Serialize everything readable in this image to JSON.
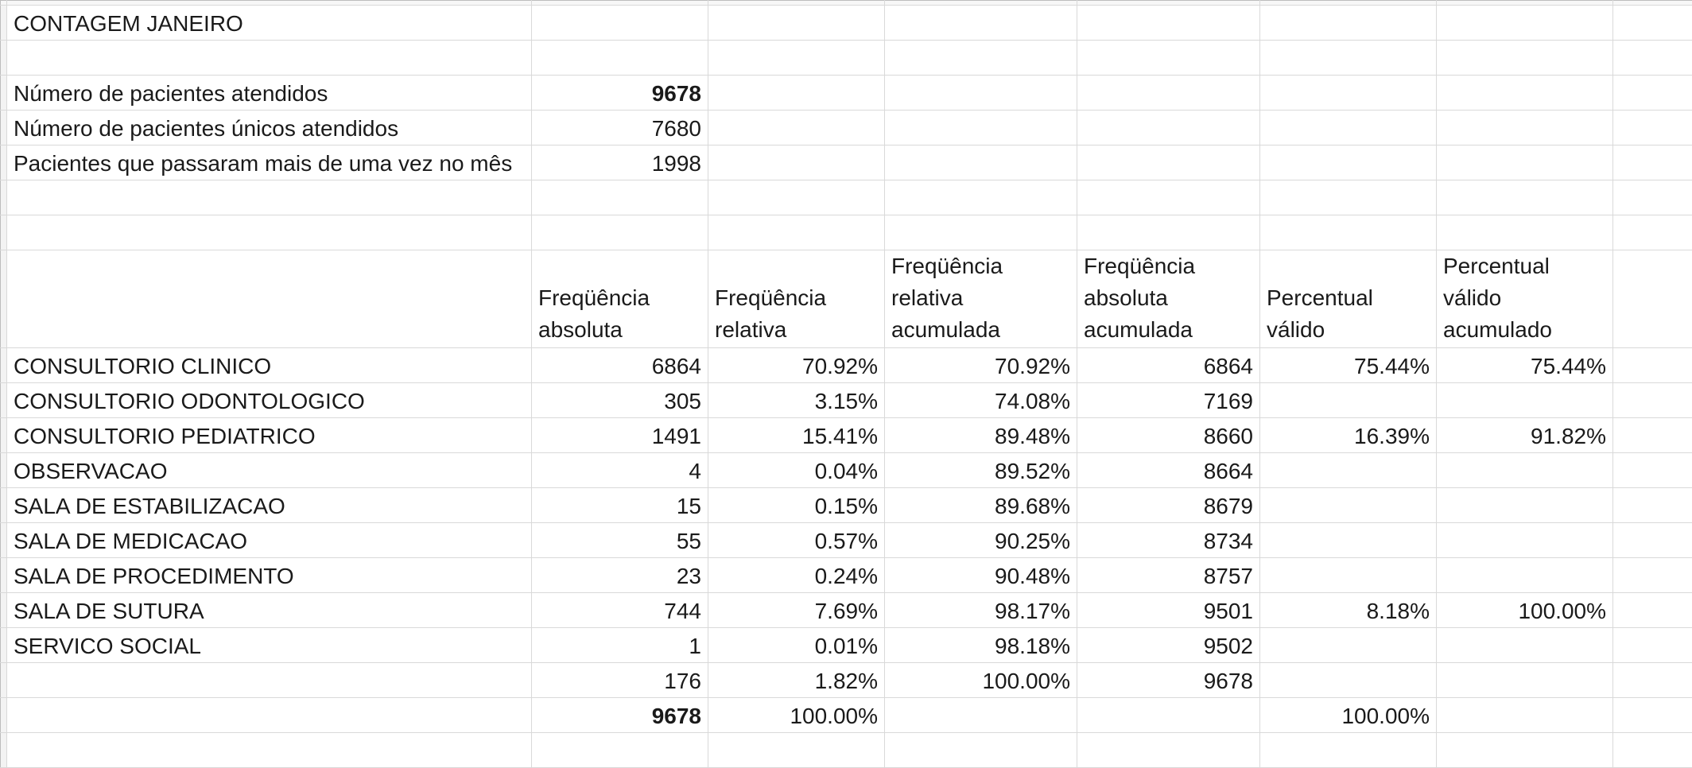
{
  "title": "CONTAGEM JANEIRO",
  "summary": [
    {
      "label": "Número de pacientes atendidos",
      "value": "9678",
      "bold": true
    },
    {
      "label": "Número de pacientes únicos atendidos",
      "value": "7680",
      "bold": false
    },
    {
      "label": "Pacientes que passaram mais de uma vez no mês",
      "value": "1998",
      "bold": false
    }
  ],
  "table": {
    "headers": [
      [
        "Freqüência",
        "absoluta"
      ],
      [
        "Freqüência",
        "relativa"
      ],
      [
        "Freqüência",
        "relativa",
        "acumulada"
      ],
      [
        "Freqüência",
        "absoluta",
        "acumulada"
      ],
      [
        "Percentual",
        "válido"
      ],
      [
        "Percentual",
        "válido",
        "acumulado"
      ]
    ],
    "rows": [
      {
        "label": "CONSULTORIO CLINICO",
        "abs": "6864",
        "rel": "70.92%",
        "rel_acc": "70.92%",
        "abs_acc": "6864",
        "valid": "75.44%",
        "valid_acc": "75.44%"
      },
      {
        "label": "CONSULTORIO ODONTOLOGICO",
        "abs": "305",
        "rel": "3.15%",
        "rel_acc": "74.08%",
        "abs_acc": "7169",
        "valid": "",
        "valid_acc": ""
      },
      {
        "label": "CONSULTORIO PEDIATRICO",
        "abs": "1491",
        "rel": "15.41%",
        "rel_acc": "89.48%",
        "abs_acc": "8660",
        "valid": "16.39%",
        "valid_acc": "91.82%"
      },
      {
        "label": "OBSERVACAO",
        "abs": "4",
        "rel": "0.04%",
        "rel_acc": "89.52%",
        "abs_acc": "8664",
        "valid": "",
        "valid_acc": ""
      },
      {
        "label": "SALA DE ESTABILIZACAO",
        "abs": "15",
        "rel": "0.15%",
        "rel_acc": "89.68%",
        "abs_acc": "8679",
        "valid": "",
        "valid_acc": ""
      },
      {
        "label": "SALA DE MEDICACAO",
        "abs": "55",
        "rel": "0.57%",
        "rel_acc": "90.25%",
        "abs_acc": "8734",
        "valid": "",
        "valid_acc": ""
      },
      {
        "label": "SALA DE PROCEDIMENTO",
        "abs": "23",
        "rel": "0.24%",
        "rel_acc": "90.48%",
        "abs_acc": "8757",
        "valid": "",
        "valid_acc": ""
      },
      {
        "label": "SALA DE SUTURA",
        "abs": "744",
        "rel": "7.69%",
        "rel_acc": "98.17%",
        "abs_acc": "9501",
        "valid": "8.18%",
        "valid_acc": "100.00%"
      },
      {
        "label": "SERVICO SOCIAL",
        "abs": "1",
        "rel": "0.01%",
        "rel_acc": "98.18%",
        "abs_acc": "9502",
        "valid": "",
        "valid_acc": ""
      },
      {
        "label": "",
        "abs": "176",
        "rel": "1.82%",
        "rel_acc": "100.00%",
        "abs_acc": "9678",
        "valid": "",
        "valid_acc": ""
      }
    ],
    "total": {
      "abs": "9678",
      "rel": "100.00%",
      "valid": "100.00%"
    }
  }
}
